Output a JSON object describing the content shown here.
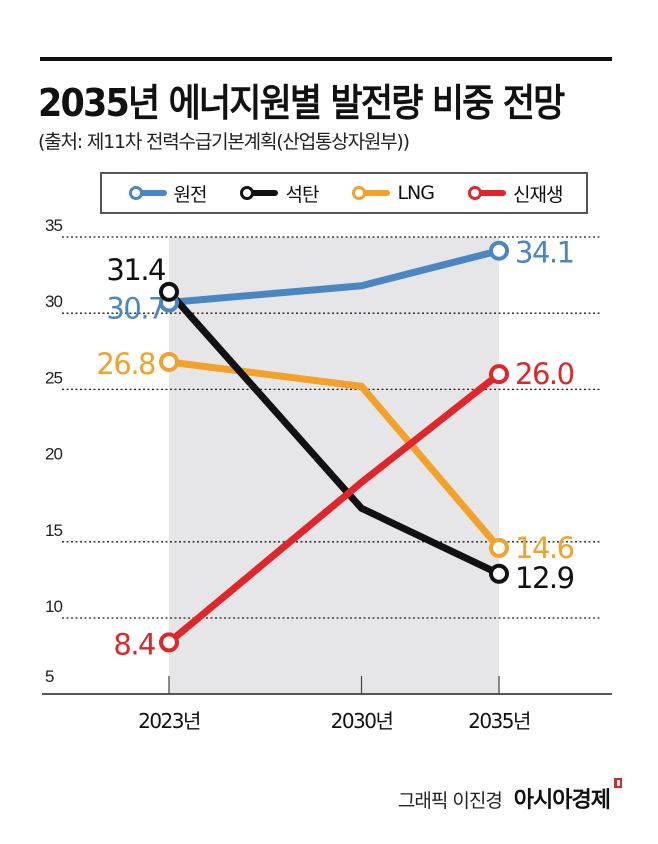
{
  "header": {
    "title": "2035년 에너지원별 발전량 비중 전망",
    "subtitle": "(출처: 제11차 전력수급기본계획(산업통상자원부))"
  },
  "credit": {
    "artist": "그래픽 이진경",
    "brand": "아시아경제"
  },
  "colors": {
    "nuclear": "#4a86bf",
    "coal": "#111111",
    "lng": "#f2a12a",
    "renewable": "#e0262b",
    "band": "#e6e6e8"
  },
  "chart_data": {
    "type": "line",
    "title": "2035년 에너지원별 발전량 비중 전망",
    "subtitle": "(출처: 제11차 전력수급기본계획(산업통상자원부))",
    "xlabel": "",
    "ylabel": "",
    "categories": [
      "2023년",
      "2030년",
      "2035년"
    ],
    "x_positions": [
      2023,
      2030,
      2035
    ],
    "ylim": [
      5,
      35
    ],
    "yticks": [
      5,
      10,
      15,
      20,
      25,
      30,
      35
    ],
    "grid": "dotted horizontal",
    "legend_position": "top",
    "shaded_band": [
      "2023년",
      "2035년"
    ],
    "series": [
      {
        "key": "nuclear",
        "name": "원전",
        "values": [
          30.7,
          31.8,
          34.1
        ],
        "labels": [
          "30.7",
          null,
          "34.1"
        ]
      },
      {
        "key": "coal",
        "name": "석탄",
        "values": [
          31.4,
          17.2,
          12.9
        ],
        "labels": [
          "31.4",
          null,
          "12.9"
        ]
      },
      {
        "key": "lng",
        "name": "LNG",
        "values": [
          26.8,
          25.2,
          14.6
        ],
        "labels": [
          "26.8",
          null,
          "14.6"
        ]
      },
      {
        "key": "renewable",
        "name": "신재생",
        "values": [
          8.4,
          18.9,
          26.0
        ],
        "labels": [
          "8.4",
          null,
          "26.0"
        ]
      }
    ]
  }
}
